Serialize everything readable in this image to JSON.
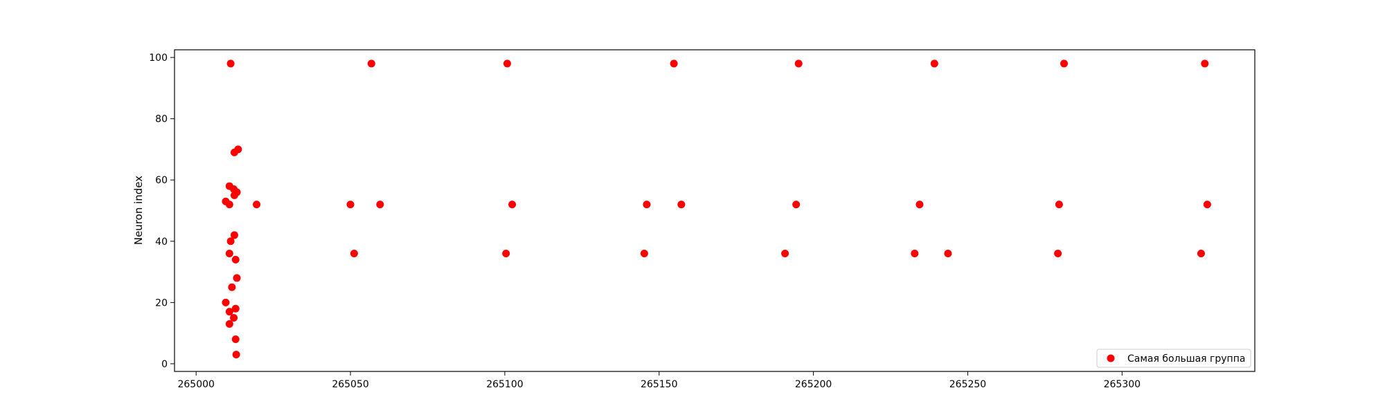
{
  "chart_data": {
    "type": "scatter",
    "title": "",
    "xlabel": "",
    "ylabel": "Neuron index",
    "xlim": [
      264993,
      265343
    ],
    "ylim": [
      -2.5,
      102.5
    ],
    "grid": false,
    "legend_position": "lower-right",
    "x_ticks": [
      {
        "value": 265000,
        "label": "265000"
      },
      {
        "value": 265050,
        "label": "265050"
      },
      {
        "value": 265100,
        "label": "265100"
      },
      {
        "value": 265150,
        "label": "265150"
      },
      {
        "value": 265200,
        "label": "265200"
      },
      {
        "value": 265250,
        "label": "265250"
      },
      {
        "value": 265300,
        "label": "265300"
      }
    ],
    "y_ticks": [
      {
        "value": 0,
        "label": "0"
      },
      {
        "value": 20,
        "label": "20"
      },
      {
        "value": 40,
        "label": "40"
      },
      {
        "value": 60,
        "label": "60"
      },
      {
        "value": 80,
        "label": "80"
      },
      {
        "value": 100,
        "label": "100"
      }
    ],
    "series": [
      {
        "name": "Самая большая группа",
        "color": "#ff0000",
        "marker": "circle",
        "points": [
          [
            265011.2,
            98
          ],
          [
            265056.8,
            98
          ],
          [
            265100.8,
            98
          ],
          [
            265154.8,
            98
          ],
          [
            265195.2,
            98
          ],
          [
            265239.2,
            98
          ],
          [
            265281.2,
            98
          ],
          [
            265326.8,
            98
          ],
          [
            265013.6,
            70
          ],
          [
            265012.4,
            69
          ],
          [
            265010.8,
            58
          ],
          [
            265012.2,
            57
          ],
          [
            265013.2,
            56
          ],
          [
            265012.4,
            55
          ],
          [
            265009.6,
            53
          ],
          [
            265010.8,
            52
          ],
          [
            265019.6,
            52
          ],
          [
            265050.0,
            52
          ],
          [
            265059.6,
            52
          ],
          [
            265102.4,
            52
          ],
          [
            265146.0,
            52
          ],
          [
            265157.2,
            52
          ],
          [
            265194.4,
            52
          ],
          [
            265234.4,
            52
          ],
          [
            265279.6,
            52
          ],
          [
            265327.6,
            52
          ],
          [
            265012.4,
            42
          ],
          [
            265011.2,
            40
          ],
          [
            265010.8,
            36
          ],
          [
            265051.2,
            36
          ],
          [
            265100.4,
            36
          ],
          [
            265145.2,
            36
          ],
          [
            265190.8,
            36
          ],
          [
            265232.8,
            36
          ],
          [
            265243.6,
            36
          ],
          [
            265279.2,
            36
          ],
          [
            265325.6,
            36
          ],
          [
            265012.8,
            34
          ],
          [
            265013.2,
            28
          ],
          [
            265011.6,
            25
          ],
          [
            265009.6,
            20
          ],
          [
            265012.8,
            18
          ],
          [
            265010.8,
            17
          ],
          [
            265012.2,
            15
          ],
          [
            265010.8,
            13
          ],
          [
            265012.8,
            8
          ],
          [
            265013.0,
            3
          ]
        ]
      }
    ]
  }
}
